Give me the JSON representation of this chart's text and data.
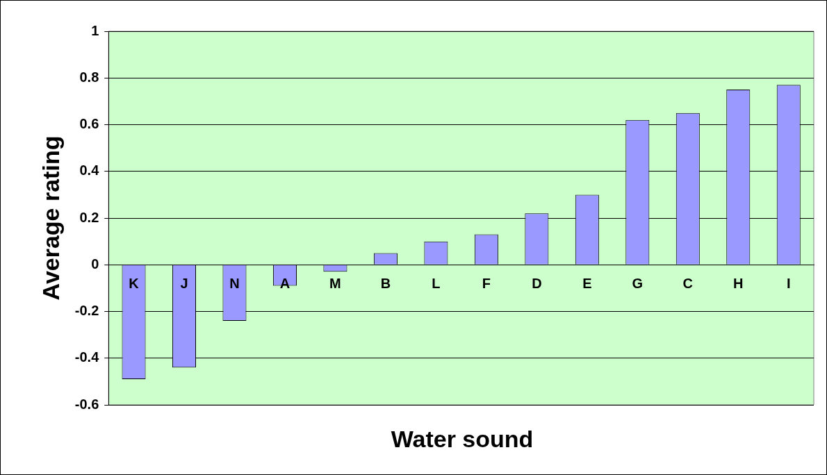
{
  "chart_data": {
    "type": "bar",
    "xlabel": "Water sound",
    "ylabel": "Average rating",
    "categories": [
      "K",
      "J",
      "N",
      "A",
      "M",
      "B",
      "L",
      "F",
      "D",
      "E",
      "G",
      "C",
      "H",
      "I"
    ],
    "values": [
      -0.49,
      -0.44,
      -0.24,
      -0.09,
      -0.03,
      0.05,
      0.1,
      0.13,
      0.22,
      0.3,
      0.62,
      0.65,
      0.75,
      0.77
    ],
    "color": "#9999ff",
    "ylim": [
      -0.6,
      1
    ],
    "yticks": [
      -0.6,
      -0.4,
      -0.2,
      0,
      0.2,
      0.4,
      0.6,
      0.8,
      1
    ],
    "grid": "y"
  }
}
